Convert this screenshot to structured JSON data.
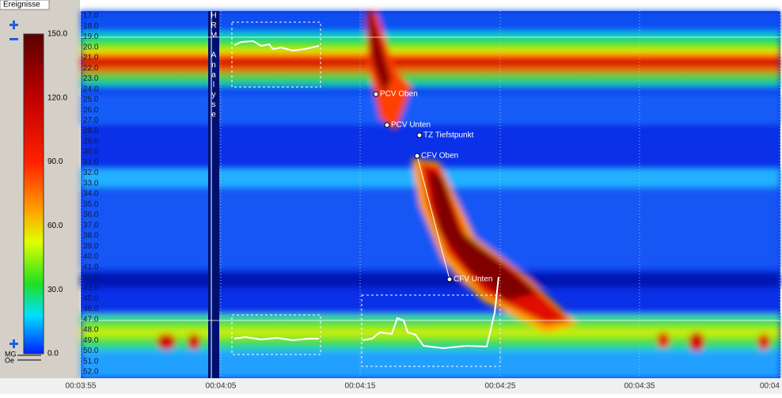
{
  "panel": {
    "title": "Ereignisse",
    "scale_ticks": [
      "150.0",
      "120.0",
      "90.0",
      "60.0",
      "30.0",
      "0.0"
    ],
    "markers": [
      "MG",
      "Oe"
    ]
  },
  "plot": {
    "side_label": "HRM Analyse",
    "rows": [
      "17.0",
      "18.0",
      "19.0",
      "20.0",
      "21.0",
      "22.0",
      "23.0",
      "24.0",
      "25.0",
      "26.0",
      "27.0",
      "28.0",
      "29.0",
      "30.0",
      "31.0",
      "32.0",
      "33.0",
      "34.0",
      "35.0",
      "36.0",
      "37.0",
      "38.0",
      "39.0",
      "40.0",
      "41.0",
      "42.0",
      "43.0",
      "45.0",
      "46.0",
      "47.0",
      "48.0",
      "49.0",
      "50.0",
      "51.0",
      "52.0"
    ],
    "times": [
      "00:03:55",
      "00:04:05",
      "00:04:15",
      "00:04:25",
      "00:04:35",
      "00:04"
    ],
    "annotations": [
      "PCV Oben",
      "PCV Unten",
      "TZ Tiefstpunkt",
      "CFV Oben",
      "CFV Unten"
    ]
  }
}
